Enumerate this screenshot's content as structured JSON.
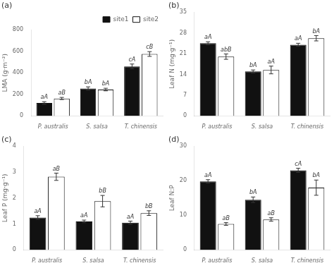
{
  "chart_data": [
    {
      "type": "bar",
      "title": "(a)",
      "ylabel": "LMA (g·m⁻²)",
      "categories": [
        "P. australis",
        "S. salsa",
        "T. chinensis"
      ],
      "series": [
        {
          "name": "site1",
          "color": "#111111",
          "values": [
            120,
            255,
            460
          ],
          "errors": [
            12,
            15,
            22
          ],
          "labels": [
            "aA",
            "bA",
            "cA"
          ]
        },
        {
          "name": "site2",
          "color": "#ffffff",
          "values": [
            162,
            245,
            575
          ],
          "errors": [
            10,
            12,
            22
          ],
          "labels": [
            "aB",
            "bA",
            "cB"
          ]
        }
      ],
      "ylim": [
        0,
        800
      ],
      "yticks": [
        0,
        200,
        400,
        600,
        800
      ],
      "grid": false,
      "legend": "upper right"
    },
    {
      "type": "bar",
      "title": "(b)",
      "ylabel": "Leaf N (mg·g⁻¹)",
      "categories": [
        "P. australis",
        "S. salsa",
        "T. chinensis"
      ],
      "series": [
        {
          "name": "site1",
          "color": "#111111",
          "values": [
            24.5,
            15.0,
            24.0
          ],
          "errors": [
            0.5,
            0.5,
            0.5
          ],
          "labels": [
            "aA",
            "bA",
            "aA"
          ]
        },
        {
          "name": "site2",
          "color": "#ffffff",
          "values": [
            20.0,
            15.5,
            26.2
          ],
          "errors": [
            0.9,
            1.3,
            0.9
          ],
          "labels": [
            "abB",
            "aA",
            "bA"
          ]
        }
      ],
      "ylim": [
        0,
        35
      ],
      "yticks": [
        0,
        7,
        14,
        21,
        28,
        35
      ],
      "grid": false,
      "legend": false
    },
    {
      "type": "bar",
      "title": "(c)",
      "ylabel": "Leaf P (mg·g⁻¹)",
      "categories": [
        "P. australis",
        "S. salsa",
        "T. chinensis"
      ],
      "series": [
        {
          "name": "site1",
          "color": "#111111",
          "values": [
            1.25,
            1.1,
            1.05
          ],
          "errors": [
            0.07,
            0.05,
            0.06
          ],
          "labels": [
            "aA",
            "aA",
            "aA"
          ]
        },
        {
          "name": "site2",
          "color": "#ffffff",
          "values": [
            2.82,
            1.88,
            1.42
          ],
          "errors": [
            0.14,
            0.22,
            0.09
          ],
          "labels": [
            "aB",
            "bB",
            "bB"
          ]
        }
      ],
      "ylim": [
        0,
        4
      ],
      "yticks": [
        0,
        1,
        2,
        3,
        4
      ],
      "grid": false,
      "legend": false
    },
    {
      "type": "bar",
      "title": "(d)",
      "ylabel": "Leaf N:P",
      "categories": [
        "P. australis",
        "S. salsa",
        "T. chinensis"
      ],
      "series": [
        {
          "name": "site1",
          "color": "#111111",
          "values": [
            19.8,
            14.5,
            23.0
          ],
          "errors": [
            0.5,
            0.8,
            0.6
          ],
          "labels": [
            "aA",
            "bA",
            "cA"
          ]
        },
        {
          "name": "site2",
          "color": "#ffffff",
          "values": [
            7.5,
            8.8,
            18.0
          ],
          "errors": [
            0.4,
            0.5,
            2.2
          ],
          "labels": [
            "aB",
            "aB",
            "bA"
          ]
        }
      ],
      "ylim": [
        0,
        30
      ],
      "yticks": [
        0,
        10,
        20,
        30
      ],
      "grid": false,
      "legend": false
    }
  ]
}
